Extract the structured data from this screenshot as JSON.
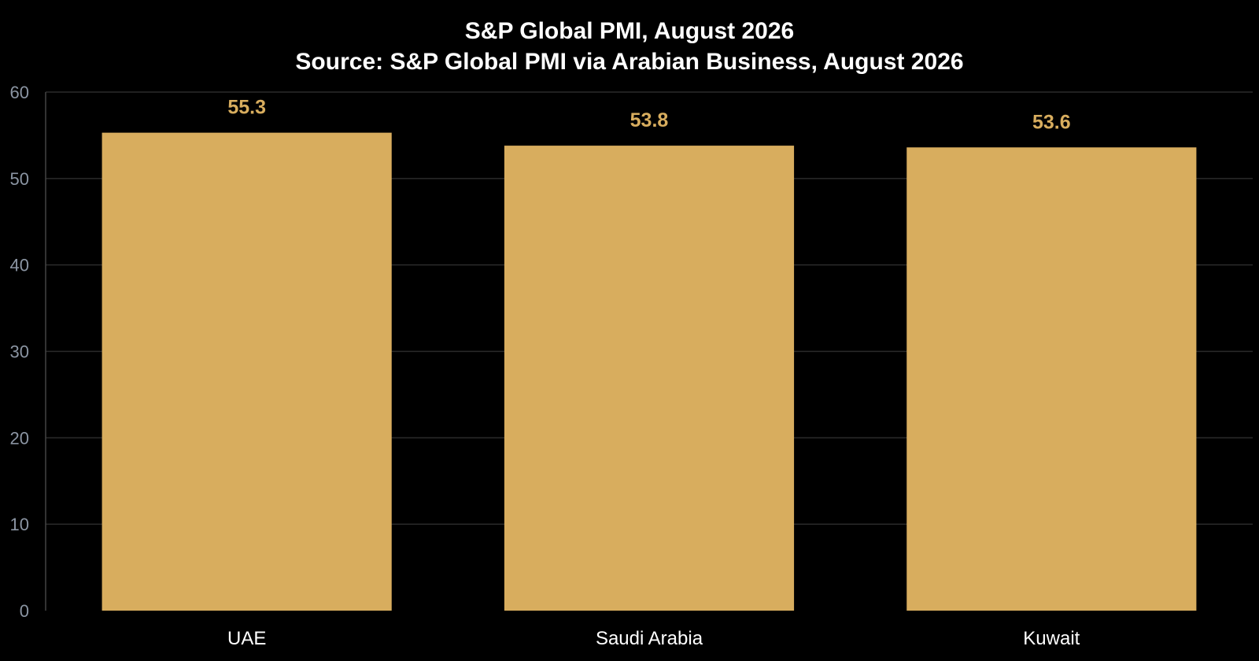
{
  "chart_data": {
    "type": "bar",
    "title": "S&P Global PMI, August 2026",
    "subtitle": "Source: S&P Global PMI via Arabian Business, August 2026",
    "categories": [
      "UAE",
      "Saudi Arabia",
      "Kuwait"
    ],
    "values": [
      55.3,
      53.8,
      53.6
    ],
    "value_labels": [
      "55.3",
      "53.8",
      "53.6"
    ],
    "ylim": [
      0,
      60
    ],
    "yticks": [
      0,
      10,
      20,
      30,
      40,
      50,
      60
    ],
    "ytick_labels": [
      "0",
      "10",
      "20",
      "30",
      "40",
      "50",
      "60"
    ],
    "xlabel": "",
    "ylabel": "",
    "grid": true,
    "legend": "none",
    "colors": {
      "background": "#000000",
      "bar": "#d8ad5e",
      "value_label": "#d8ad5e",
      "grid": "#2b2b2b",
      "axis": "#444444",
      "ytick": "#8b95a3",
      "xtick": "#ffffff",
      "title": "#ffffff"
    }
  }
}
